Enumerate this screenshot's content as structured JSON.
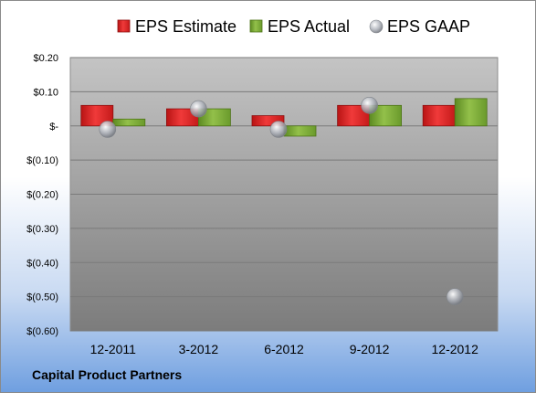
{
  "colors": {
    "estimate": "#e02020",
    "actual": "#77a832",
    "gaap": "#b8bcc4"
  },
  "company_label": "Capital Product Partners",
  "chart_data": {
    "type": "bar",
    "categories": [
      "12-2011",
      "3-2012",
      "6-2012",
      "9-2012",
      "12-2012"
    ],
    "series": [
      {
        "name": "EPS Estimate",
        "kind": "bar",
        "values": [
          0.06,
          0.05,
          0.03,
          0.06,
          0.06
        ]
      },
      {
        "name": "EPS Actual",
        "kind": "bar",
        "values": [
          0.02,
          0.05,
          -0.03,
          0.06,
          0.08
        ]
      },
      {
        "name": "EPS GAAP",
        "kind": "scatter",
        "values": [
          -0.01,
          0.05,
          -0.01,
          0.06,
          -0.5
        ]
      }
    ],
    "y_ticks": [
      {
        "value": 0.2,
        "label": "$0.20"
      },
      {
        "value": 0.1,
        "label": "$0.10"
      },
      {
        "value": 0.0,
        "label": "$-"
      },
      {
        "value": -0.1,
        "label": "$(0.10)"
      },
      {
        "value": -0.2,
        "label": "$(0.20)"
      },
      {
        "value": -0.3,
        "label": "$(0.30)"
      },
      {
        "value": -0.4,
        "label": "$(0.40)"
      },
      {
        "value": -0.5,
        "label": "$(0.50)"
      },
      {
        "value": -0.6,
        "label": "$(0.60)"
      }
    ],
    "ylim": [
      -0.6,
      0.2
    ],
    "grid": true,
    "legend_position": "top"
  }
}
